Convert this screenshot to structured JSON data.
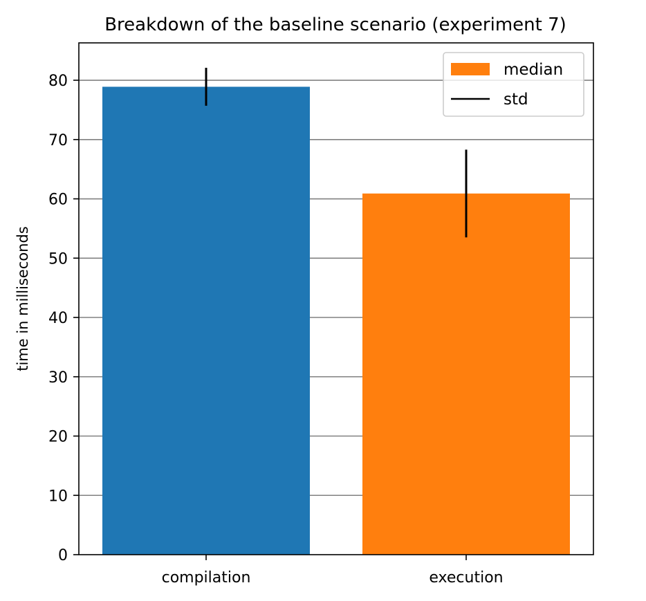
{
  "chart_data": {
    "type": "bar",
    "title": "Breakdown of the baseline scenario (experiment 7)",
    "xlabel": "",
    "ylabel": "time in milliseconds",
    "categories": [
      "compilation",
      "execution"
    ],
    "values": [
      78.9,
      60.9
    ],
    "errors": [
      3.2,
      7.4
    ],
    "colors": [
      "#1f77b4",
      "#ff7f0e"
    ],
    "error_color": "#000000",
    "ylim": [
      0,
      86.3
    ],
    "yticks": [
      0,
      10,
      20,
      30,
      40,
      50,
      60,
      70,
      80
    ],
    "ytick_labels": [
      "0",
      "10",
      "20",
      "30",
      "40",
      "50",
      "60",
      "70",
      "80"
    ],
    "grid": true,
    "grid_color": "#808080",
    "legend": {
      "placement": "top-right",
      "items": [
        {
          "label": "median",
          "kind": "patch",
          "color": "#ff7f0e"
        },
        {
          "label": "std",
          "kind": "line",
          "color": "#000000"
        }
      ]
    }
  }
}
